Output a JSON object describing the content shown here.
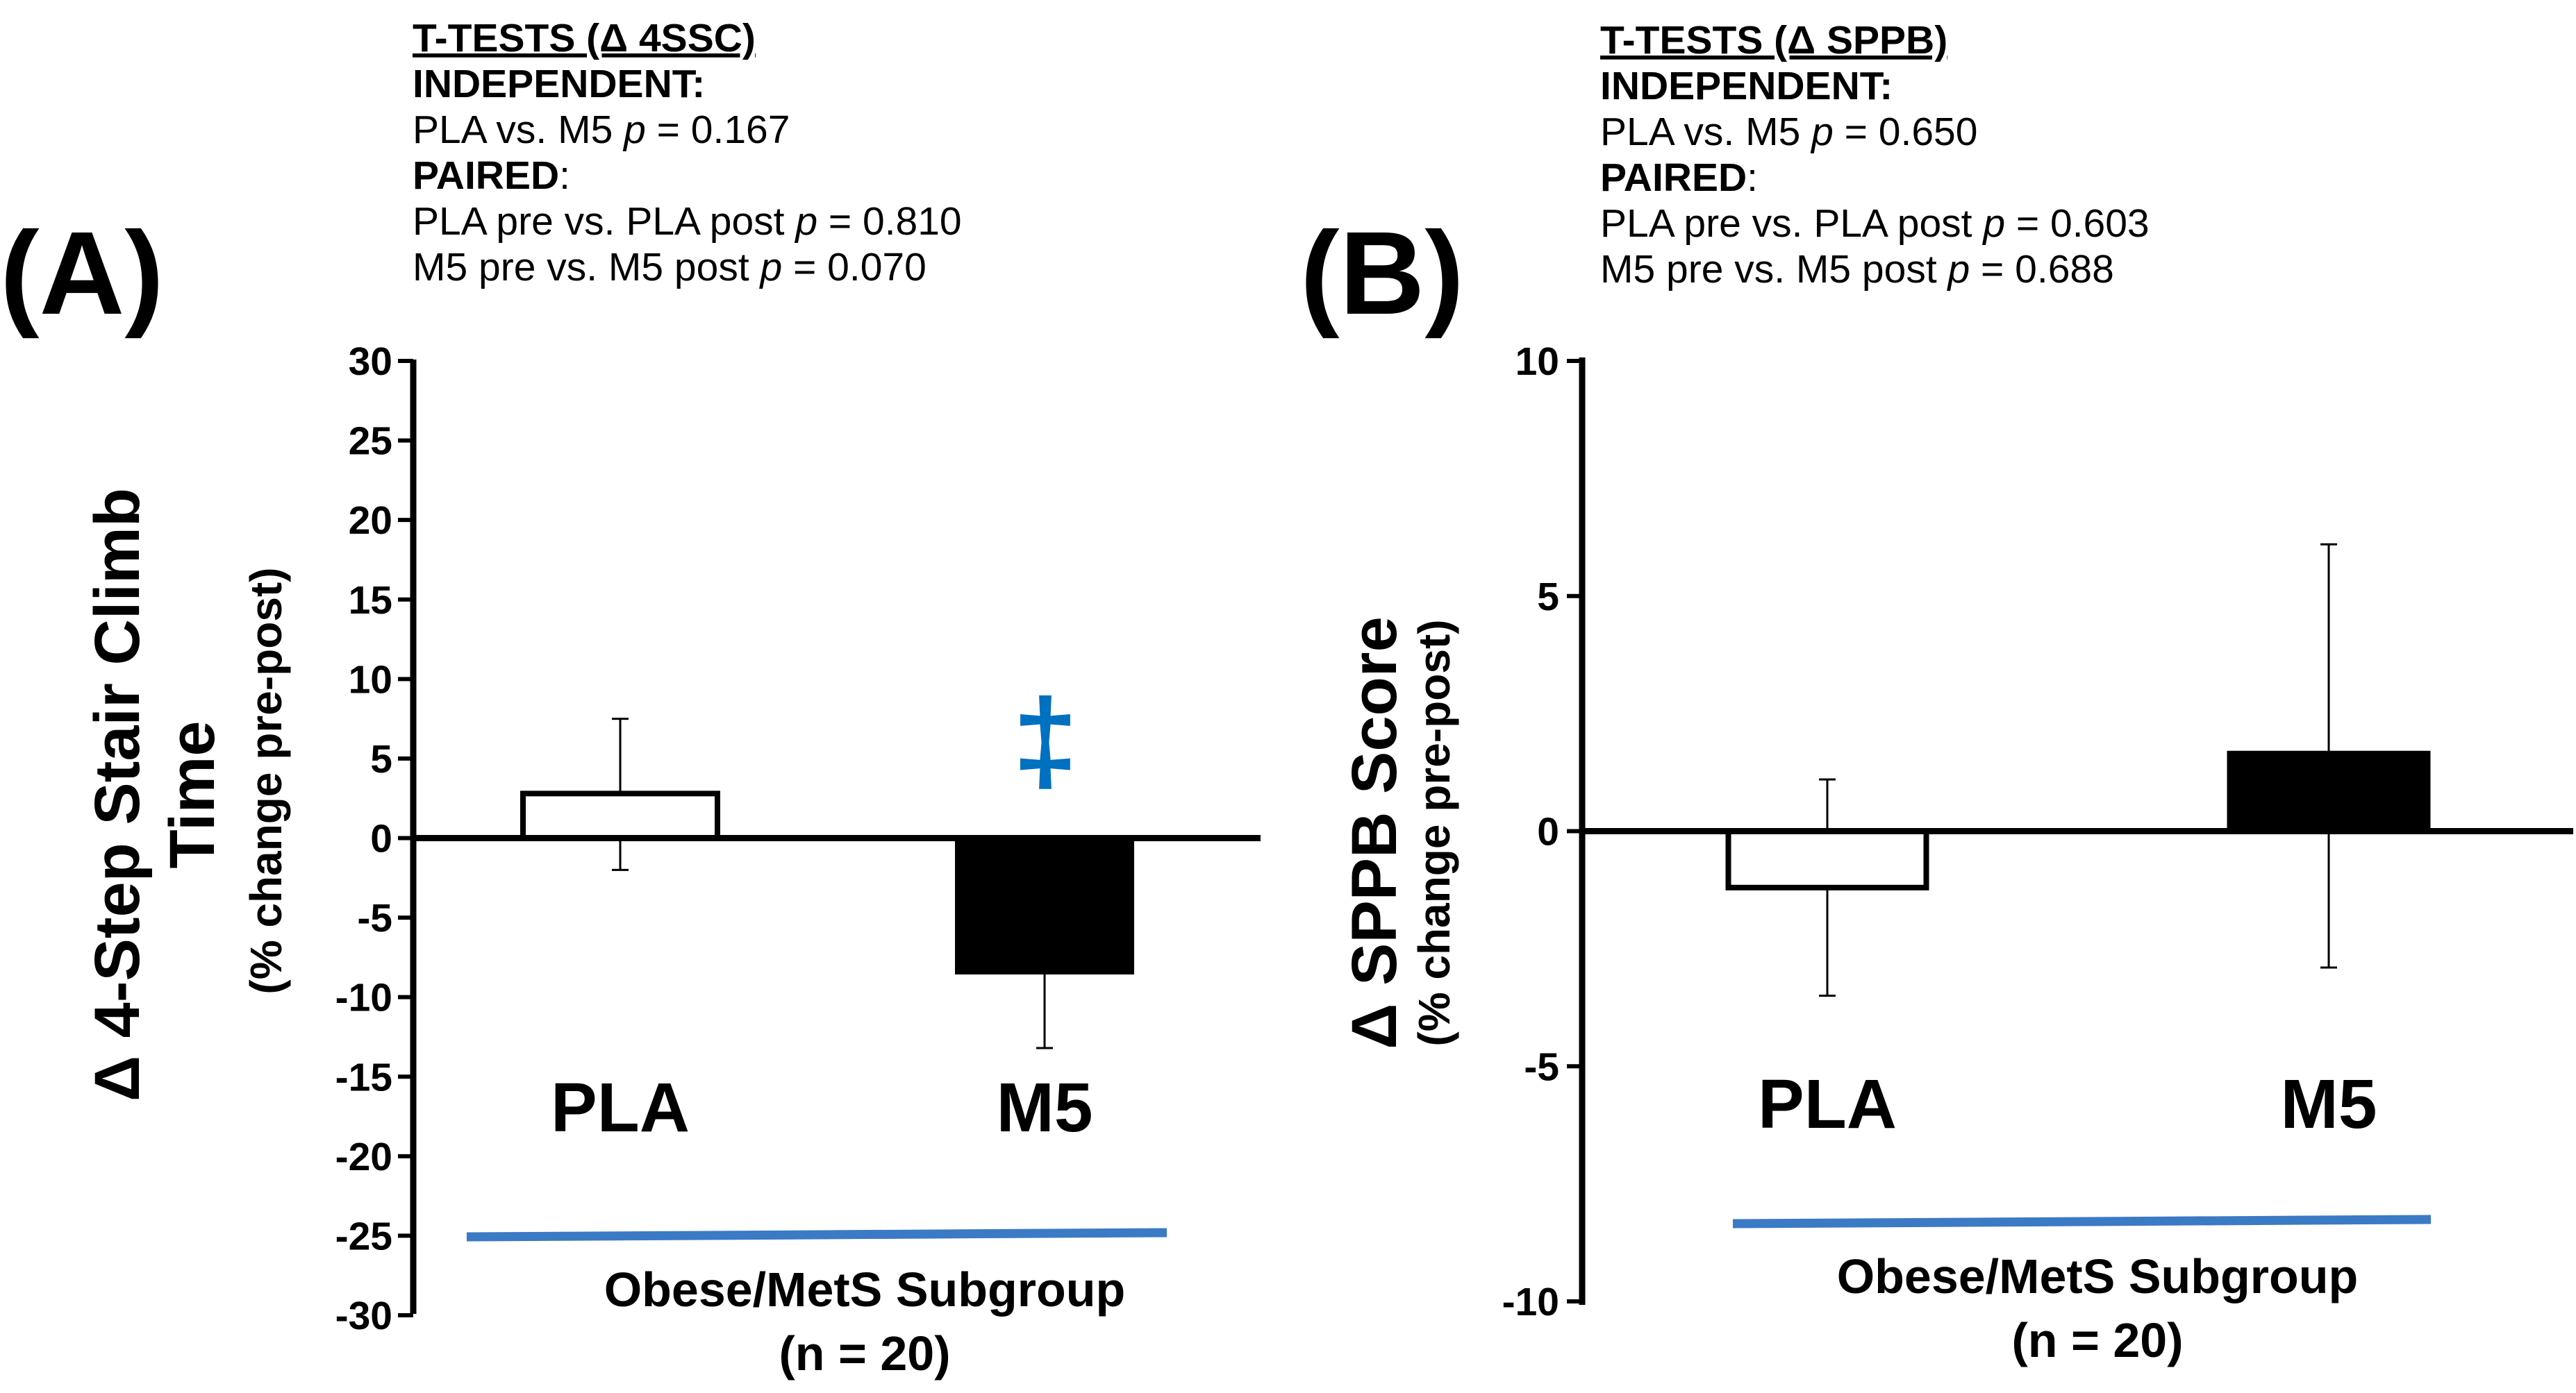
{
  "chart_data": [
    {
      "type": "bar",
      "panel": "(A)",
      "categories": [
        "PLA",
        "M5"
      ],
      "values": [
        2.8,
        -8.4
      ],
      "error_upper": [
        7.5,
        -13.2
      ],
      "error_lower": [
        -2.0,
        -8.4
      ],
      "bar_fills": [
        "#ffffff",
        "#000000"
      ],
      "ylim": [
        -30,
        30
      ],
      "yticks": [
        "30",
        "25",
        "20",
        "15",
        "10",
        "5",
        "0",
        "-5",
        "-10",
        "-15",
        "-20",
        "-25",
        "-30"
      ],
      "ylabel_line1": "Δ 4-Step Stair Climb",
      "ylabel_line2": "Time",
      "ylabel_sub": "(% change pre-post)",
      "annotation": "‡",
      "annotation_color": "#0070c0",
      "group_label": "Obese/MetS Subgroup",
      "group_n": "(n = 20)",
      "group_line_color": "#3b7ac4",
      "stats": {
        "title": "T-TESTS (Δ 4SSC)",
        "independent_label": "INDEPENDENT:",
        "independent_prefix": "PLA vs. M5  ",
        "independent_p": "p",
        "independent_value": " =  0.167",
        "paired_label": "PAIRED",
        "paired_colon": ":",
        "paired1_prefix": "PLA pre vs. PLA post ",
        "paired1_p": "p",
        "paired1_value": " = 0.810",
        "paired2_prefix": "M5 pre vs. M5 post ",
        "paired2_p": "p",
        "paired2_value": " =  0.070"
      }
    },
    {
      "type": "bar",
      "panel": "(B)",
      "categories": [
        "PLA",
        "M5"
      ],
      "values": [
        -1.2,
        1.65
      ],
      "error_upper": [
        1.1,
        6.1
      ],
      "error_lower": [
        -3.5,
        -2.9
      ],
      "bar_fills": [
        "#ffffff",
        "#000000"
      ],
      "ylim": [
        -10,
        10
      ],
      "yticks": [
        "10",
        "5",
        "0",
        "-5",
        "-10"
      ],
      "ylabel_line1": "Δ SPPB Score",
      "ylabel_sub": "(% change pre-post)",
      "group_label": "Obese/MetS Subgroup",
      "group_n": "(n = 20)",
      "group_line_color": "#3b7ac4",
      "stats": {
        "title": "T-TESTS (Δ SPPB)",
        "independent_label": "INDEPENDENT:",
        "independent_prefix": "PLA vs. M5  ",
        "independent_p": "p",
        "independent_value": " =  0.650",
        "paired_label": "PAIRED",
        "paired_colon": ":",
        "paired1_prefix": "PLA pre vs. PLA post ",
        "paired1_p": "p",
        "paired1_value": " = 0.603",
        "paired2_prefix": "M5 pre vs. M5 post ",
        "paired2_p": "p",
        "paired2_value": " =  0.688"
      }
    }
  ]
}
